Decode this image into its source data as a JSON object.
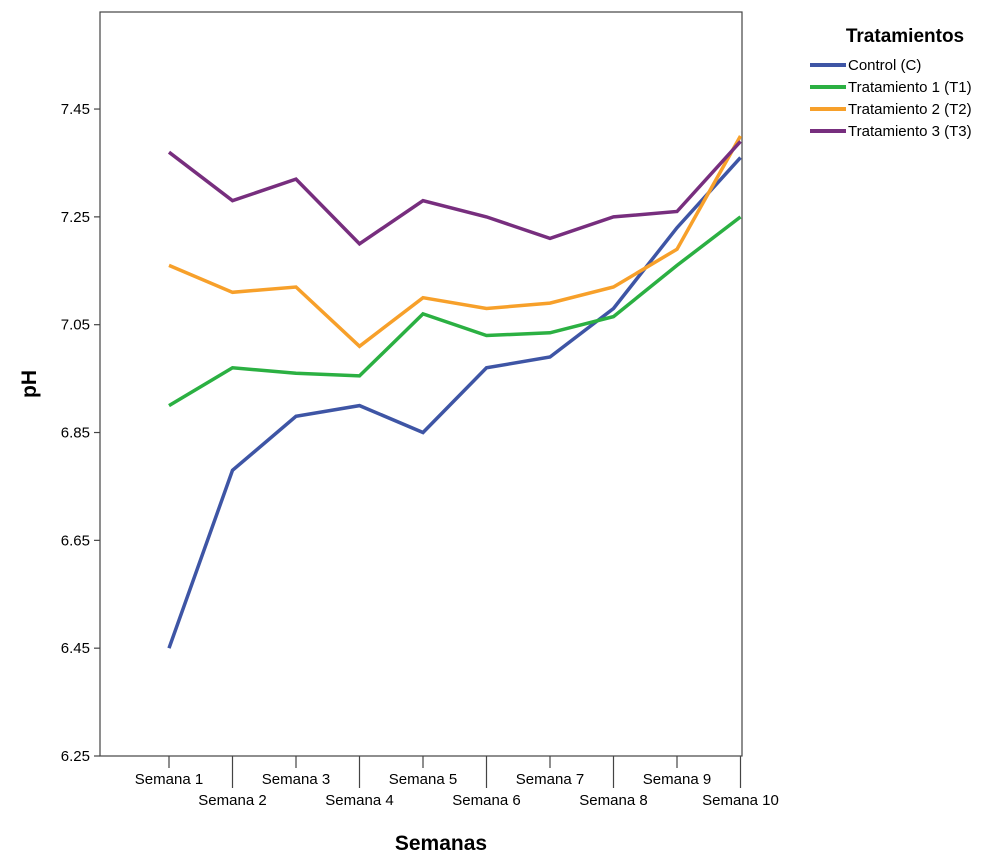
{
  "chart_data": {
    "type": "line",
    "xlabel": "Semanas",
    "ylabel": "pH",
    "legend_title": "Tratamientos",
    "legend_position": "top-right",
    "grid": false,
    "ylim": [
      6.25,
      7.63
    ],
    "yticks": [
      "6.25",
      "6.45",
      "6.65",
      "6.85",
      "7.05",
      "7.25",
      "7.45"
    ],
    "categories": [
      "Semana 1",
      "Semana 2",
      "Semana 3",
      "Semana 4",
      "Semana 5",
      "Semana 6",
      "Semana 7",
      "Semana 8",
      "Semana 9",
      "Semana 10"
    ],
    "series": [
      {
        "name": "Control (C)",
        "color": "#3e55a5",
        "values": [
          6.45,
          6.78,
          6.88,
          6.9,
          6.85,
          6.97,
          6.99,
          7.08,
          7.23,
          7.36
        ]
      },
      {
        "name": "Tratamiento 1 (T1)",
        "color": "#2bb042",
        "values": [
          6.9,
          6.97,
          6.96,
          6.955,
          7.07,
          7.03,
          7.035,
          7.065,
          7.16,
          7.25
        ]
      },
      {
        "name": "Tratamiento 2 (T2)",
        "color": "#f7a02a",
        "values": [
          7.16,
          7.11,
          7.12,
          7.01,
          7.1,
          7.08,
          7.09,
          7.12,
          7.19,
          7.4
        ]
      },
      {
        "name": "Tratamiento 3 (T3)",
        "color": "#772e7e",
        "values": [
          7.37,
          7.28,
          7.32,
          7.2,
          7.28,
          7.25,
          7.21,
          7.25,
          7.26,
          7.39
        ]
      }
    ]
  }
}
